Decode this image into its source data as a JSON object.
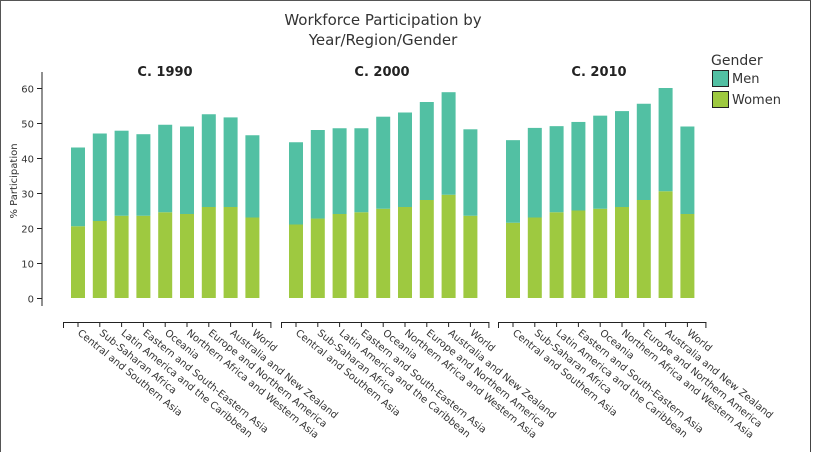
{
  "chart_data": {
    "type": "bar",
    "stacked": true,
    "title_lines": [
      "Workforce Participation by",
      "Year/Region/Gender"
    ],
    "ylabel": "% Participation",
    "ylim": [
      0,
      65
    ],
    "yticks": [
      0,
      10,
      20,
      30,
      40,
      50,
      60
    ],
    "colors": {
      "Men": "#52c0a3",
      "Women": "#9ec940"
    },
    "legend": {
      "title": "Gender",
      "position": "top-right",
      "entries": [
        "Men",
        "Women"
      ]
    },
    "categories": [
      "Central and Southern Asia",
      "Sub-Saharan Africa",
      "Latin America and the Caribbean",
      "Eastern and South-Eastern Asia",
      "Oceania",
      "Northern Africa and Western Asia",
      "Europe and Northern America",
      "Australia and New Zealand",
      "World"
    ],
    "panels": [
      {
        "title": "C. 1990",
        "series": [
          {
            "name": "Women",
            "values": [
              20.5,
              22,
              23.5,
              23.5,
              24.5,
              24,
              26,
              26,
              23
            ]
          },
          {
            "name": "Men",
            "values": [
              22.5,
              25,
              24.3,
              23.3,
              25,
              25,
              26.5,
              25.6,
              23.5
            ]
          }
        ]
      },
      {
        "title": "C. 2000",
        "series": [
          {
            "name": "Women",
            "values": [
              21,
              22.7,
              24,
              24.5,
              25.5,
              26,
              28,
              29.5,
              23.5
            ]
          },
          {
            "name": "Men",
            "values": [
              23.5,
              25.3,
              24.5,
              24,
              26.3,
              27,
              28,
              29.3,
              24.7
            ]
          }
        ]
      },
      {
        "title": "C. 2010",
        "series": [
          {
            "name": "Women",
            "values": [
              21.5,
              23,
              24.5,
              25,
              25.5,
              26,
              28,
              30.5,
              24
            ]
          },
          {
            "name": "Men",
            "values": [
              23.6,
              25.6,
              24.6,
              25.3,
              26.6,
              27.4,
              27.5,
              29.5,
              25
            ]
          }
        ]
      }
    ]
  }
}
